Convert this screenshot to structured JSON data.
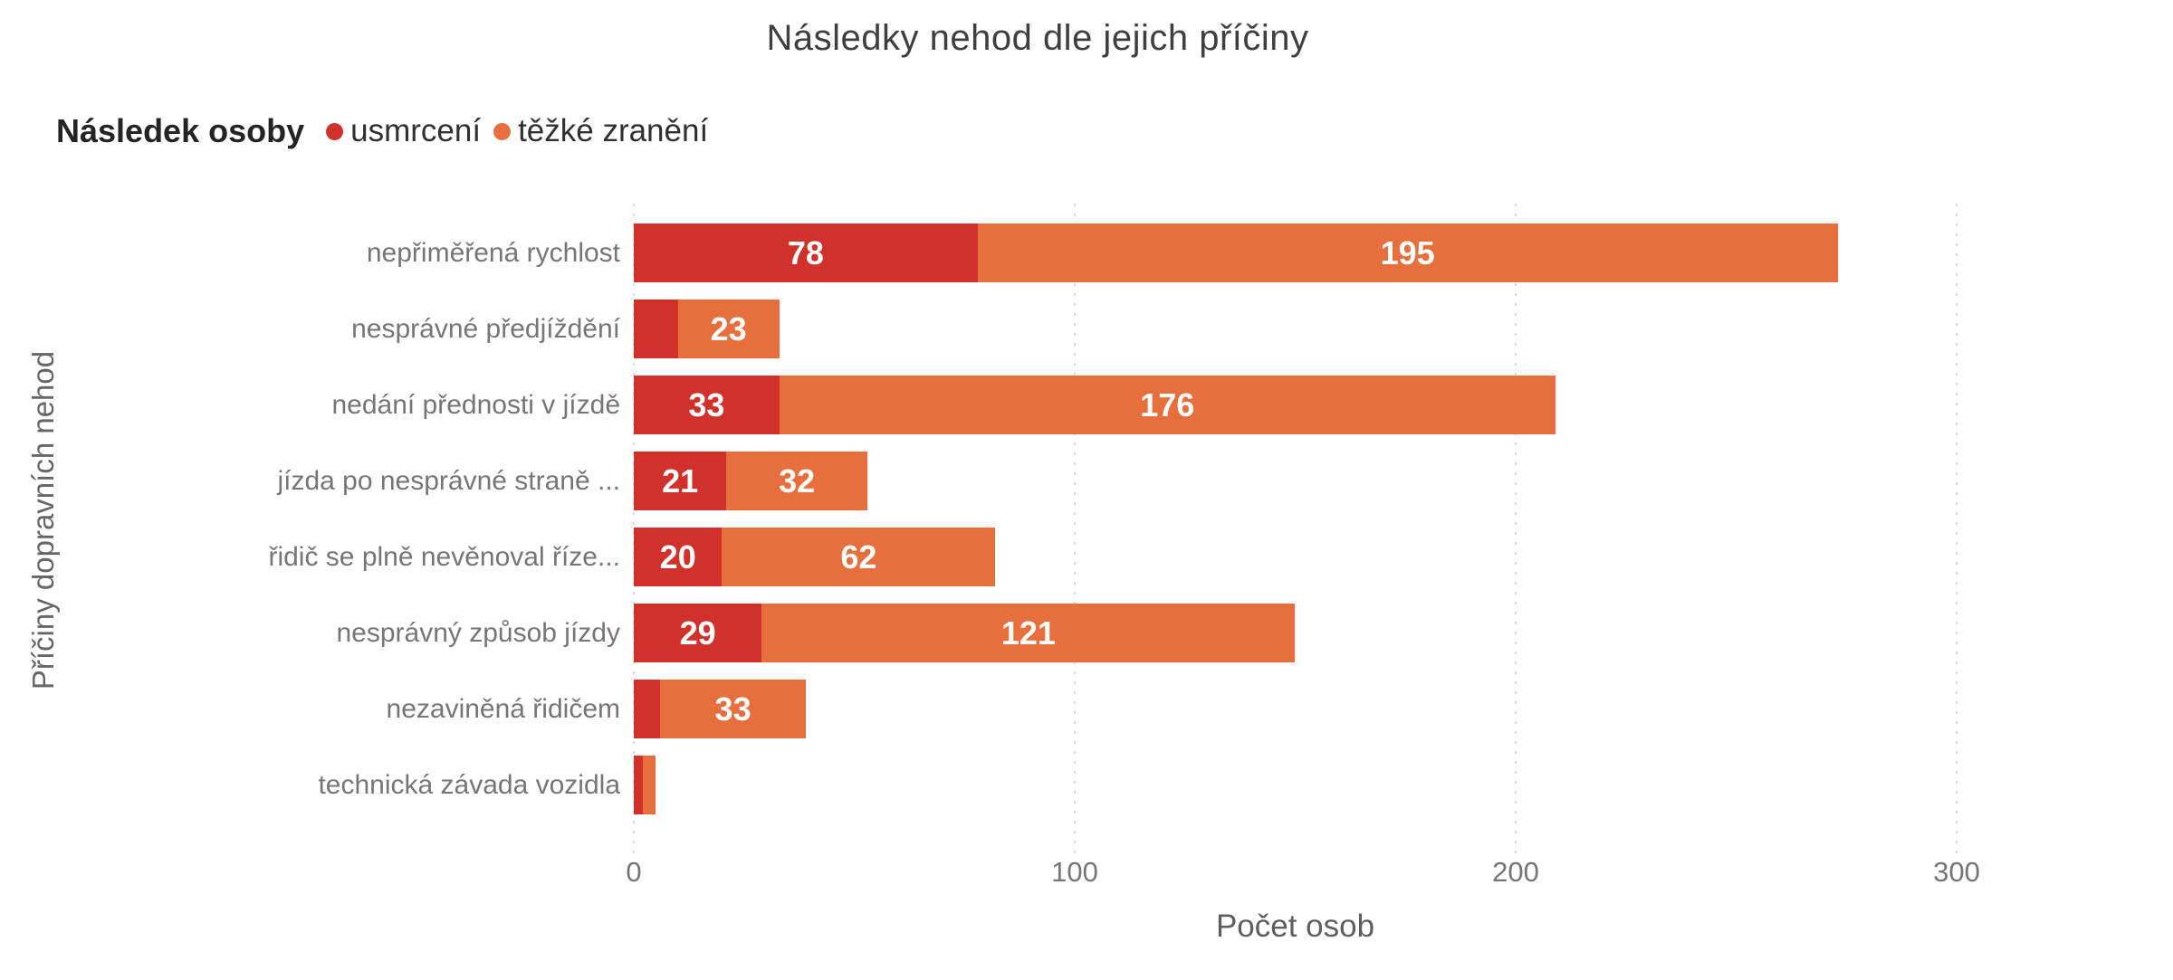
{
  "title": "Následky nehod dle jejich příčiny",
  "legend": {
    "title": "Následek osoby",
    "items": [
      {
        "label": "usmrcení",
        "color": "#d0312a"
      },
      {
        "label": "těžké zranění",
        "color": "#e66f3d"
      }
    ]
  },
  "axes": {
    "x_label": "Počet osob",
    "y_label": "Příčiny dopravních nehod",
    "x_ticks": [
      0,
      100,
      200,
      300
    ]
  },
  "colors": {
    "fatal_red": "#d0312a",
    "severe_orange": "#e66f3d",
    "gridline": "#d9d9d9",
    "bar_value_text": "#ffffff"
  },
  "chart_data": {
    "type": "bar",
    "orientation": "horizontal",
    "stacked": true,
    "title": "Následky nehod dle jejich příčiny",
    "xlabel": "Počet osob",
    "ylabel": "Příčiny dopravních nehod",
    "xlim": [
      0,
      310
    ],
    "x_ticks": [
      0,
      100,
      200,
      300
    ],
    "grid": "vertical dotted",
    "legend_position": "top-left",
    "categories": [
      "nepřiměřená rychlost",
      "nesprávné předjíždění",
      "nedání přednosti v jízdě",
      "jízda po nesprávné straně ...",
      "řidič se plně nevěnoval říze...",
      "nesprávný způsob jízdy",
      "nezaviněná řidičem",
      "technická závada vozidla"
    ],
    "series": [
      {
        "name": "usmrcení",
        "color": "#d0312a",
        "values": [
          78,
          10,
          33,
          21,
          20,
          29,
          6,
          2
        ]
      },
      {
        "name": "těžké zranění",
        "color": "#e66f3d",
        "values": [
          195,
          23,
          176,
          32,
          62,
          121,
          33,
          3
        ]
      }
    ],
    "note": "values 10, 6, 2 and 3 are unlabeled in the chart (segments too narrow); estimated from bar widths"
  }
}
